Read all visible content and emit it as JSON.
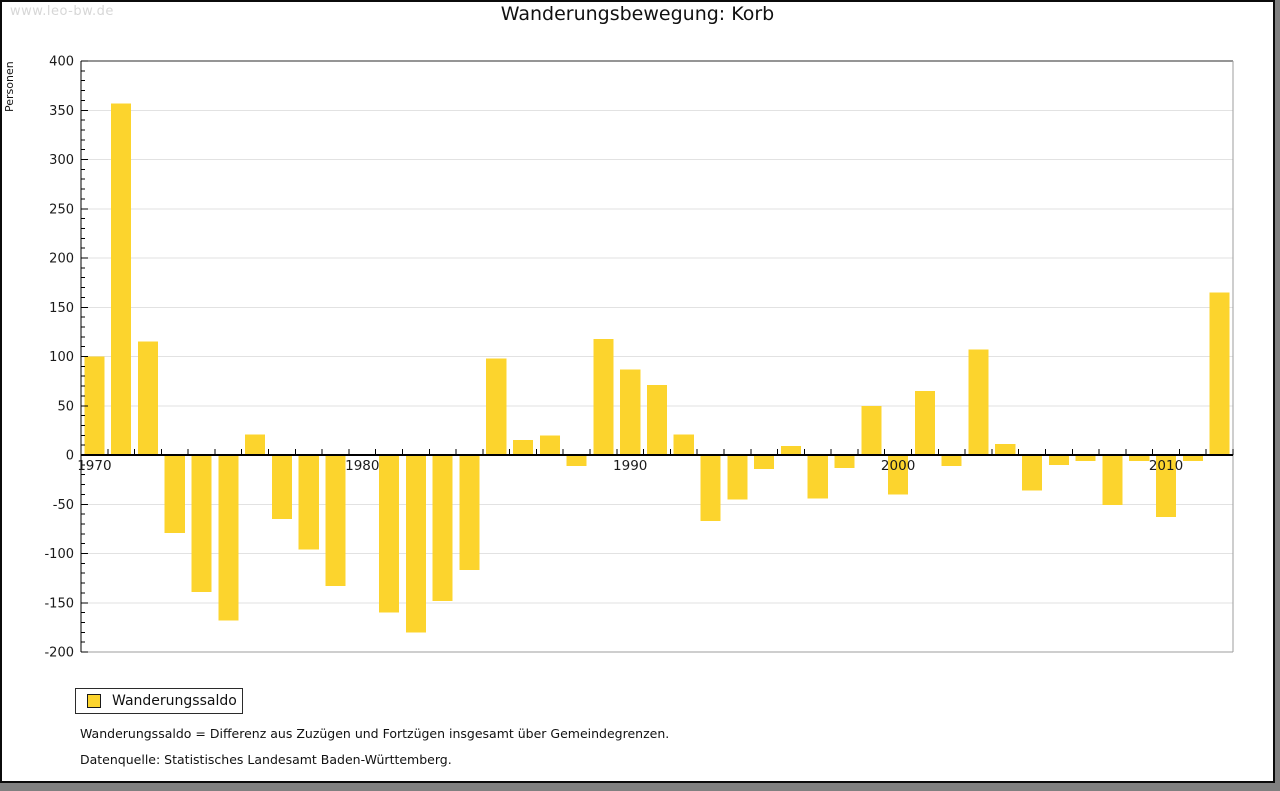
{
  "watermark": "www.leo-bw.de",
  "title": "Wanderungsbewegung: Korb",
  "legend": {
    "label": "Wanderungssaldo"
  },
  "footnotes": {
    "line1": "Wanderungssaldo = Differenz aus Zuzügen und Fortzügen insgesamt über Gemeindegrenzen.",
    "line2": "Datenquelle: Statistisches Landesamt Baden-Württemberg."
  },
  "colors": {
    "bar": "#fcd42d",
    "grid": "#e2e2e2",
    "axis": "#000000",
    "box_top": "#2b2b2b",
    "box_side": "#9e9e9e",
    "tick_label": "#1a1a1a",
    "watermark": "#d7d7d7",
    "backdrop": "#808080"
  },
  "chart_data": {
    "type": "bar",
    "title": "Wanderungsbewegung: Korb",
    "xlabel": "",
    "ylabel": "Personen",
    "ylim": [
      -200,
      400
    ],
    "ytick_step": 50,
    "ytick_labels": [
      "400",
      "350",
      "300",
      "250",
      "200",
      "150",
      "100",
      "50",
      "0",
      "-50",
      "-100",
      "-150",
      "-200"
    ],
    "minor_ytick_step": 10,
    "grid": true,
    "legend_position": "bottom-left",
    "series_name": "Wanderungssaldo",
    "x": [
      1970,
      1971,
      1972,
      1973,
      1974,
      1975,
      1976,
      1977,
      1978,
      1979,
      1980,
      1981,
      1982,
      1983,
      1984,
      1985,
      1986,
      1987,
      1988,
      1989,
      1990,
      1991,
      1992,
      1993,
      1994,
      1995,
      1996,
      1997,
      1998,
      1999,
      2000,
      2001,
      2002,
      2003,
      2004,
      2005,
      2006,
      2007,
      2008,
      2009,
      2010,
      2011,
      2012
    ],
    "values": [
      100,
      357,
      115,
      -79,
      -139,
      -168,
      21,
      -65,
      -96,
      -133,
      0,
      -160,
      -180,
      -148,
      -117,
      98,
      15,
      20,
      -11,
      118,
      87,
      71,
      21,
      -67,
      -45,
      -14,
      9,
      -44,
      -13,
      50,
      -40,
      65,
      -11,
      107,
      11,
      -36,
      -10,
      -6,
      -51,
      -6,
      -63,
      -6,
      165
    ],
    "xtick_labels": [
      {
        "year": 1970,
        "label": "1970"
      },
      {
        "year": 1980,
        "label": "1980"
      },
      {
        "year": 1990,
        "label": "1990"
      },
      {
        "year": 2000,
        "label": "2000"
      },
      {
        "year": 2010,
        "label": "2010"
      }
    ]
  }
}
